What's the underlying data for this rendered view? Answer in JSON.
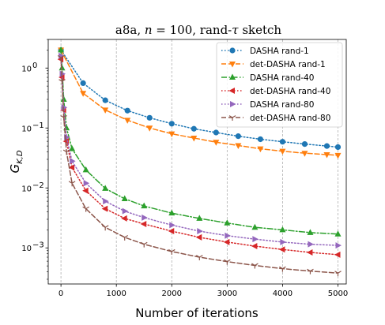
{
  "chart_data": {
    "type": "line",
    "title": "a8a, n = 100, rand-τ sketch",
    "title_parts": {
      "prefix": "a8a, ",
      "n_symbol": "n",
      "n_eq": " = 100, rand-",
      "tau_symbol": "τ",
      "suffix": " sketch"
    },
    "xlabel": "Number of iterations",
    "ylabel": "G",
    "ylabel_subscript": "K,D",
    "xlim": [
      -230,
      5150
    ],
    "ylim": [
      0.00025,
      3.0
    ],
    "yscale": "log",
    "x_ticks": [
      0,
      1000,
      2000,
      3000,
      4000,
      5000
    ],
    "x_tick_labels": [
      "0",
      "1000",
      "2000",
      "3000",
      "4000",
      "5000"
    ],
    "y_ticks": [
      0.001,
      0.01,
      0.1,
      1
    ],
    "y_tick_labels": [
      "10",
      "10",
      "10",
      "10"
    ],
    "y_tick_exponents": [
      "−3",
      "−2",
      "−1",
      "0"
    ],
    "grid": "vertical",
    "legend_position": "top-right",
    "series": [
      {
        "name": "DASHA rand-1",
        "color": "#1f77b4",
        "dash": "dotted",
        "marker": "circle",
        "x": [
          0,
          400,
          800,
          1200,
          1600,
          2000,
          2400,
          2800,
          3200,
          3600,
          4000,
          4400,
          4800,
          5000
        ],
        "y": [
          2.0,
          0.56,
          0.29,
          0.195,
          0.148,
          0.118,
          0.097,
          0.084,
          0.073,
          0.065,
          0.059,
          0.054,
          0.05,
          0.048
        ]
      },
      {
        "name": "det-DASHA rand-1",
        "color": "#ff7f0e",
        "dash": "dashed",
        "marker": "triangle-down",
        "x": [
          0,
          400,
          800,
          1200,
          1600,
          2000,
          2400,
          2800,
          3200,
          3600,
          4000,
          4400,
          4800,
          5000
        ],
        "y": [
          2.0,
          0.38,
          0.2,
          0.135,
          0.1,
          0.08,
          0.068,
          0.058,
          0.051,
          0.045,
          0.041,
          0.038,
          0.036,
          0.035
        ]
      },
      {
        "name": "DASHA rand-40",
        "color": "#2ca02c",
        "dash": "dashdot",
        "marker": "triangle-up",
        "x": [
          0,
          20,
          50,
          100,
          200,
          450,
          800,
          1150,
          1500,
          2000,
          2500,
          3000,
          3500,
          4000,
          4500,
          5000
        ],
        "y": [
          2.0,
          1.0,
          0.3,
          0.1,
          0.045,
          0.02,
          0.0098,
          0.0066,
          0.005,
          0.0038,
          0.0031,
          0.0026,
          0.0022,
          0.002,
          0.0018,
          0.0017
        ]
      },
      {
        "name": "det-DASHA rand-40",
        "color": "#d62728",
        "dash": "dotted",
        "marker": "triangle-left",
        "x": [
          0,
          20,
          50,
          100,
          200,
          450,
          800,
          1150,
          1500,
          2000,
          2500,
          3000,
          3500,
          4000,
          4500,
          5000
        ],
        "y": [
          1.4,
          0.7,
          0.2,
          0.06,
          0.022,
          0.009,
          0.0045,
          0.0031,
          0.0025,
          0.0019,
          0.0015,
          0.00125,
          0.00107,
          0.00094,
          0.00084,
          0.00077
        ]
      },
      {
        "name": "DASHA rand-80",
        "color": "#9467bd",
        "dash": "dotted",
        "marker": "triangle-right",
        "x": [
          0,
          20,
          50,
          100,
          200,
          450,
          800,
          1150,
          1500,
          2000,
          2500,
          3000,
          3500,
          4000,
          4500,
          5000
        ],
        "y": [
          1.6,
          0.8,
          0.22,
          0.07,
          0.028,
          0.012,
          0.006,
          0.0041,
          0.0032,
          0.0024,
          0.0019,
          0.0016,
          0.0014,
          0.00125,
          0.00115,
          0.0011
        ]
      },
      {
        "name": "det-DASHA rand-80",
        "color": "#8c564b",
        "dash": "dashed",
        "marker": "tri-down",
        "x": [
          0,
          20,
          50,
          100,
          200,
          450,
          800,
          1150,
          1500,
          2000,
          2500,
          3000,
          3500,
          4000,
          4500,
          5000
        ],
        "y": [
          1.5,
          0.6,
          0.15,
          0.04,
          0.012,
          0.0045,
          0.0022,
          0.0015,
          0.00115,
          0.00087,
          0.0007,
          0.00059,
          0.00051,
          0.00045,
          0.00041,
          0.00038
        ]
      }
    ]
  }
}
